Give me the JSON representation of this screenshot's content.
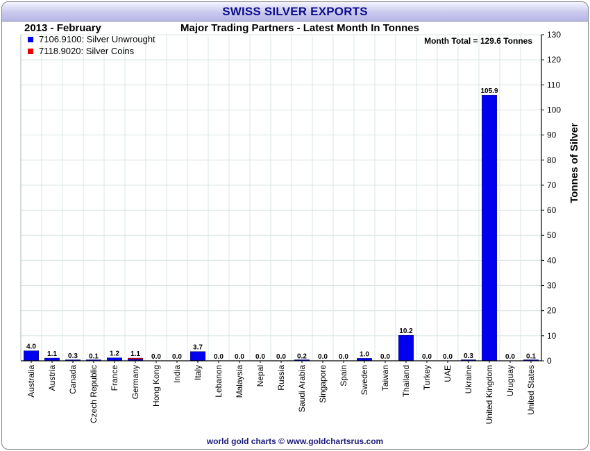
{
  "banner": {
    "title": "SWISS SILVER EXPORTS"
  },
  "header": {
    "period": "2013 - February",
    "subtitle": "Major Trading Partners - Latest Month In Tonnes"
  },
  "total_label": "Month Total = 129.6 Tonnes",
  "footer": {
    "credit": "world gold charts © www.goldchartsrus.com"
  },
  "colors": {
    "unwrought": "#0000ee",
    "coins": "#ee0000",
    "grid": "#d8e4e4",
    "banner_text": "#0d0d8c"
  },
  "chart_data": {
    "type": "bar",
    "stacked": true,
    "title": "Major Trading Partners - Latest Month In Tonnes",
    "ylabel": "Tonnes of Silver",
    "xlabel": "",
    "ylim": [
      0,
      130
    ],
    "yticks": [
      0,
      10,
      20,
      30,
      40,
      50,
      60,
      70,
      80,
      90,
      100,
      110,
      120,
      130
    ],
    "y_axis_side": "right",
    "grid": true,
    "legend_position": "top-left",
    "categories": [
      "Australia",
      "Austria",
      "Canada",
      "Czech Republic",
      "France",
      "Germany",
      "Hong Kong",
      "India",
      "Italy",
      "Lebanon",
      "Malaysia",
      "Nepal",
      "Russia",
      "Saudi Arabia",
      "Singapore",
      "Spain",
      "Sweden",
      "Taiwan",
      "Thailand",
      "Turkey",
      "UAE",
      "Ukraine",
      "United Kingdom",
      "Uruguay",
      "United States"
    ],
    "totals_labels": [
      "4.0",
      "1.1",
      "0.3",
      "0.1",
      "1.2",
      "1.1",
      "0.0",
      "0.0",
      "3.7",
      "0.0",
      "0.0",
      "0.0",
      "0.0",
      "0.2",
      "0.0",
      "0.0",
      "1.0",
      "0.0",
      "10.2",
      "0.0",
      "0.0",
      "0.3",
      "105.9",
      "0.0",
      "0.1"
    ],
    "series": [
      {
        "name": "7106.9100: Silver Unwrought",
        "color": "#0000ee",
        "values": [
          4.0,
          1.1,
          0.3,
          0.1,
          1.2,
          0.6,
          0.0,
          0.0,
          3.7,
          0.0,
          0.0,
          0.0,
          0.0,
          0.2,
          0.0,
          0.0,
          1.0,
          0.0,
          10.2,
          0.0,
          0.0,
          0.3,
          105.9,
          0.0,
          0.1
        ]
      },
      {
        "name": "7118.9020: Silver Coins",
        "color": "#ee0000",
        "values": [
          0.0,
          0.0,
          0.0,
          0.0,
          0.0,
          0.5,
          0.0,
          0.0,
          0.0,
          0.0,
          0.0,
          0.0,
          0.0,
          0.0,
          0.0,
          0.0,
          0.0,
          0.0,
          0.0,
          0.0,
          0.0,
          0.0,
          0.0,
          0.0,
          0.0
        ]
      }
    ]
  }
}
